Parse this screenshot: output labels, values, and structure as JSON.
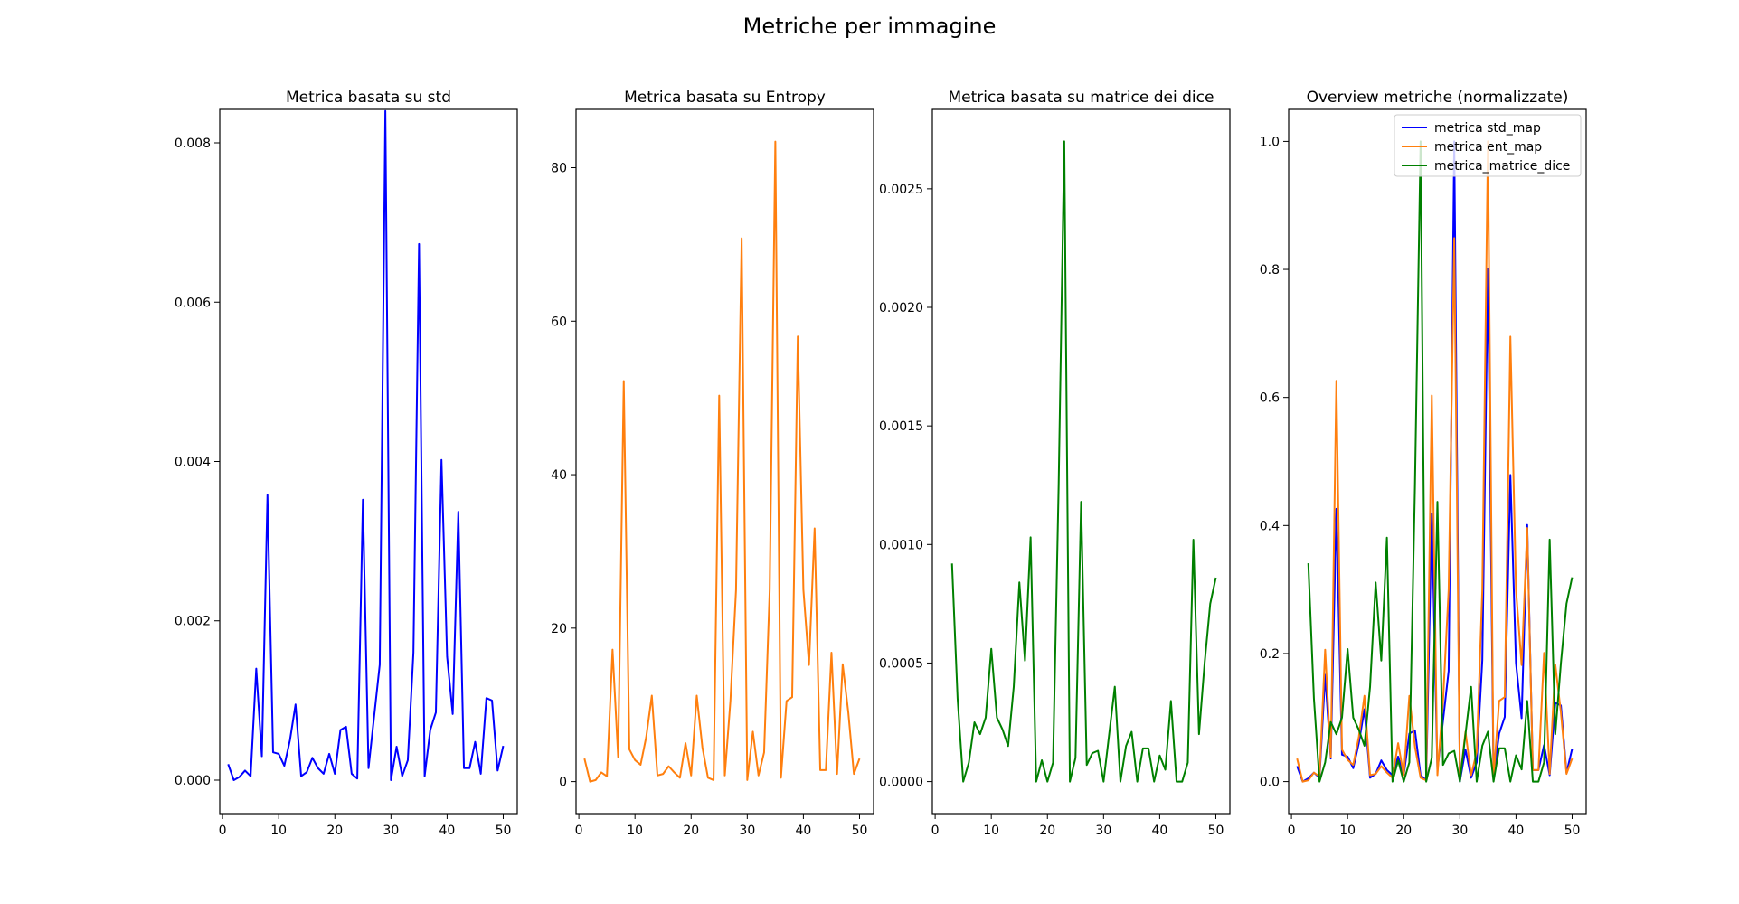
{
  "figure": {
    "suptitle": "Metriche per immagine"
  },
  "chart_data": [
    {
      "type": "line",
      "title": "Metrica basata su std",
      "xlabel": "",
      "ylabel": "",
      "xlim": [
        -0.5,
        52.5
      ],
      "ylim": [
        -0.00042,
        0.00842
      ],
      "xticks": [
        0,
        10,
        20,
        30,
        40,
        50
      ],
      "xtick_labels": [
        "0",
        "10",
        "20",
        "30",
        "40",
        "50"
      ],
      "yticks": [
        0,
        0.002,
        0.004,
        0.006,
        0.008
      ],
      "ytick_labels": [
        "0.000",
        "0.002",
        "0.004",
        "0.006",
        "0.008"
      ],
      "grid": false,
      "series": [
        {
          "color": "#0000ff",
          "x": [
            1,
            2,
            3,
            4,
            5,
            6,
            7,
            8,
            9,
            10,
            11,
            12,
            13,
            14,
            15,
            16,
            17,
            18,
            19,
            20,
            21,
            22,
            23,
            24,
            25,
            26,
            27,
            28,
            29,
            30,
            31,
            32,
            33,
            34,
            35,
            36,
            37,
            38,
            39,
            40,
            41,
            42,
            43,
            44,
            45,
            46,
            47,
            48,
            49,
            50
          ],
          "values": [
            0.0002,
            0.0,
            4e-05,
            0.00012,
            5e-05,
            0.0014,
            0.0003,
            0.00358,
            0.00035,
            0.00033,
            0.00018,
            0.0005,
            0.00095,
            5e-05,
            0.0001,
            0.00028,
            0.00015,
            8e-05,
            0.00033,
            8e-05,
            0.00063,
            0.00067,
            8e-05,
            2e-05,
            0.00352,
            0.00015,
            0.0008,
            0.00145,
            0.0084,
            0.0,
            0.00042,
            5e-05,
            0.00025,
            0.0016,
            0.00673,
            5e-05,
            0.00063,
            0.00085,
            0.00402,
            0.00155,
            0.00083,
            0.00337,
            0.00015,
            0.00015,
            0.00048,
            8e-05,
            0.00103,
            0.001,
            0.00012,
            0.00043
          ]
        }
      ]
    },
    {
      "type": "line",
      "title": "Metrica basata su Entropy",
      "xlabel": "",
      "ylabel": "",
      "xlim": [
        -0.5,
        52.5
      ],
      "ylim": [
        -4.17,
        87.6
      ],
      "xticks": [
        0,
        10,
        20,
        30,
        40,
        50
      ],
      "xtick_labels": [
        "0",
        "10",
        "20",
        "30",
        "40",
        "50"
      ],
      "yticks": [
        0,
        20,
        40,
        60,
        80
      ],
      "ytick_labels": [
        "0",
        "20",
        "40",
        "60",
        "80"
      ],
      "grid": false,
      "series": [
        {
          "color": "#ff7f0e",
          "x": [
            1,
            2,
            3,
            4,
            5,
            6,
            7,
            8,
            9,
            10,
            11,
            12,
            13,
            14,
            15,
            16,
            17,
            18,
            19,
            20,
            21,
            22,
            23,
            24,
            25,
            26,
            27,
            28,
            29,
            30,
            31,
            32,
            33,
            34,
            35,
            36,
            37,
            38,
            39,
            40,
            41,
            42,
            43,
            44,
            45,
            46,
            47,
            48,
            49,
            50
          ],
          "values": [
            3.0,
            0.0,
            0.2,
            1.2,
            0.7,
            17.2,
            3.2,
            52.2,
            4.2,
            2.8,
            2.2,
            5.8,
            11.2,
            0.8,
            1.0,
            2.0,
            1.2,
            0.5,
            5.0,
            0.8,
            11.2,
            4.5,
            0.5,
            0.2,
            50.3,
            0.8,
            10.5,
            25.0,
            70.8,
            0.2,
            6.5,
            0.8,
            3.8,
            25.0,
            83.4,
            0.5,
            10.5,
            11.0,
            58.0,
            25.0,
            15.2,
            33.0,
            1.5,
            1.5,
            16.8,
            1.0,
            15.3,
            9.0,
            1.0,
            3.0
          ]
        }
      ]
    },
    {
      "type": "line",
      "title": "Metrica basata su matrice dei dice",
      "xlabel": "",
      "ylabel": "",
      "xlim": [
        -0.5,
        52.5
      ],
      "ylim": [
        -0.000135,
        0.002835
      ],
      "xticks": [
        0,
        10,
        20,
        30,
        40,
        50
      ],
      "xtick_labels": [
        "0",
        "10",
        "20",
        "30",
        "40",
        "50"
      ],
      "yticks": [
        0,
        0.0005,
        0.001,
        0.0015,
        0.002,
        0.0025
      ],
      "ytick_labels": [
        "0.0000",
        "0.0005",
        "0.0010",
        "0.0015",
        "0.0020",
        "0.0025"
      ],
      "grid": false,
      "series": [
        {
          "color": "#008000",
          "x": [
            3,
            4,
            5,
            6,
            7,
            8,
            9,
            10,
            11,
            12,
            13,
            14,
            15,
            16,
            17,
            18,
            19,
            20,
            21,
            22,
            23,
            24,
            25,
            26,
            27,
            28,
            29,
            30,
            31,
            32,
            33,
            34,
            35,
            36,
            37,
            38,
            39,
            40,
            41,
            42,
            43,
            44,
            45,
            46,
            47,
            48,
            49,
            50
          ],
          "values": [
            0.00092,
            0.00035,
            0.0,
            8e-05,
            0.00025,
            0.0002,
            0.00027,
            0.00056,
            0.00027,
            0.00022,
            0.00015,
            0.0004,
            0.00084,
            0.00051,
            0.00103,
            0.0,
            9e-05,
            0.0,
            8e-05,
            0.00125,
            0.0027,
            0.0,
            0.0001,
            0.00118,
            7e-05,
            0.00012,
            0.00013,
            0.0,
            0.0002,
            0.0004,
            0.0,
            0.00015,
            0.00021,
            0.0,
            0.00014,
            0.00014,
            0.0,
            0.00011,
            5e-05,
            0.00034,
            0.0,
            0.0,
            8e-05,
            0.00102,
            0.0002,
            0.0005,
            0.00075,
            0.00086
          ]
        }
      ]
    },
    {
      "type": "line",
      "title": "Overview metriche (normalizzate)",
      "xlabel": "",
      "ylabel": "",
      "xlim": [
        -0.5,
        52.5
      ],
      "ylim": [
        -0.05,
        1.05
      ],
      "xticks": [
        0,
        10,
        20,
        30,
        40,
        50
      ],
      "xtick_labels": [
        "0",
        "10",
        "20",
        "30",
        "40",
        "50"
      ],
      "yticks": [
        0,
        0.2,
        0.4,
        0.6,
        0.8,
        1.0
      ],
      "ytick_labels": [
        "0.0",
        "0.2",
        "0.4",
        "0.6",
        "0.8",
        "1.0"
      ],
      "grid": false,
      "legend": "top-right",
      "series": [
        {
          "name": "metrica std_map",
          "color": "#0000ff",
          "x": [
            1,
            2,
            3,
            4,
            5,
            6,
            7,
            8,
            9,
            10,
            11,
            12,
            13,
            14,
            15,
            16,
            17,
            18,
            19,
            20,
            21,
            22,
            23,
            24,
            25,
            26,
            27,
            28,
            29,
            30,
            31,
            32,
            33,
            34,
            35,
            36,
            37,
            38,
            39,
            40,
            41,
            42,
            43,
            44,
            45,
            46,
            47,
            48,
            49,
            50
          ],
          "values": [
            0.024,
            0.0,
            0.005,
            0.014,
            0.006,
            0.167,
            0.036,
            0.426,
            0.042,
            0.039,
            0.021,
            0.06,
            0.113,
            0.006,
            0.012,
            0.033,
            0.018,
            0.01,
            0.039,
            0.01,
            0.075,
            0.08,
            0.01,
            0.002,
            0.419,
            0.018,
            0.095,
            0.173,
            1.0,
            0.0,
            0.05,
            0.006,
            0.03,
            0.19,
            0.801,
            0.006,
            0.075,
            0.101,
            0.479,
            0.185,
            0.099,
            0.401,
            0.018,
            0.018,
            0.057,
            0.01,
            0.123,
            0.119,
            0.014,
            0.051
          ]
        },
        {
          "name": "metrica ent_map",
          "color": "#ff7f0e",
          "x": [
            1,
            2,
            3,
            4,
            5,
            6,
            7,
            8,
            9,
            10,
            11,
            12,
            13,
            14,
            15,
            16,
            17,
            18,
            19,
            20,
            21,
            22,
            23,
            24,
            25,
            26,
            27,
            28,
            29,
            30,
            31,
            32,
            33,
            34,
            35,
            36,
            37,
            38,
            39,
            40,
            41,
            42,
            43,
            44,
            45,
            46,
            47,
            48,
            49,
            50
          ],
          "values": [
            0.036,
            0.0,
            0.002,
            0.014,
            0.008,
            0.206,
            0.038,
            0.626,
            0.05,
            0.034,
            0.026,
            0.07,
            0.134,
            0.01,
            0.012,
            0.024,
            0.014,
            0.006,
            0.06,
            0.01,
            0.134,
            0.054,
            0.006,
            0.002,
            0.603,
            0.01,
            0.126,
            0.3,
            0.849,
            0.002,
            0.078,
            0.01,
            0.046,
            0.3,
            1.0,
            0.006,
            0.126,
            0.132,
            0.695,
            0.3,
            0.182,
            0.396,
            0.018,
            0.018,
            0.201,
            0.012,
            0.183,
            0.108,
            0.012,
            0.036
          ]
        },
        {
          "name": "metrica_matrice_dice",
          "color": "#008000",
          "x": [
            3,
            4,
            5,
            6,
            7,
            8,
            9,
            10,
            11,
            12,
            13,
            14,
            15,
            16,
            17,
            18,
            19,
            20,
            21,
            22,
            23,
            24,
            25,
            26,
            27,
            28,
            29,
            30,
            31,
            32,
            33,
            34,
            35,
            36,
            37,
            38,
            39,
            40,
            41,
            42,
            43,
            44,
            45,
            46,
            47,
            48,
            49,
            50
          ],
          "values": [
            0.341,
            0.13,
            0.0,
            0.03,
            0.093,
            0.074,
            0.1,
            0.207,
            0.1,
            0.081,
            0.056,
            0.148,
            0.311,
            0.189,
            0.381,
            0.0,
            0.033,
            0.0,
            0.03,
            0.463,
            1.0,
            0.0,
            0.037,
            0.437,
            0.026,
            0.044,
            0.048,
            0.0,
            0.074,
            0.148,
            0.0,
            0.056,
            0.078,
            0.0,
            0.052,
            0.052,
            0.0,
            0.041,
            0.019,
            0.126,
            0.0,
            0.0,
            0.03,
            0.378,
            0.074,
            0.185,
            0.278,
            0.319
          ]
        }
      ]
    }
  ]
}
